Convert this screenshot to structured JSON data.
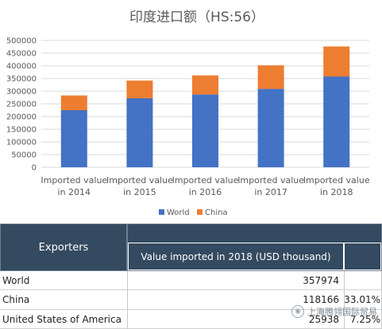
{
  "chart_data": {
    "type": "bar",
    "stacked": true,
    "title": "印度进口额（HS:56）",
    "categories": [
      [
        "Imported value",
        "in 2014"
      ],
      [
        "Imported value",
        "in 2015"
      ],
      [
        "Imported value",
        "in 2016"
      ],
      [
        "Imported value",
        "in 2017"
      ],
      [
        "Imported value",
        "in 2018"
      ]
    ],
    "series": [
      {
        "name": "World",
        "color": "#4472c4",
        "values": [
          225000,
          272000,
          287000,
          309000,
          357974
        ]
      },
      {
        "name": "China",
        "color": "#ed7d31",
        "values": [
          58000,
          70000,
          75000,
          93000,
          118166
        ]
      }
    ],
    "ylim": [
      0,
      500000
    ],
    "yticks": [
      0,
      50000,
      100000,
      150000,
      200000,
      250000,
      300000,
      350000,
      400000,
      450000,
      500000
    ],
    "grid": true,
    "legend": "bottom"
  },
  "table": {
    "header_left": "Exporters",
    "header_right": "Value imported in 2018 (USD thousand)",
    "rows": [
      {
        "name": "World",
        "value": "357974",
        "share": ""
      },
      {
        "name": "China",
        "value": "118166",
        "share": "33.01%"
      },
      {
        "name": "United States of America",
        "value": "25938",
        "share": "7.25%"
      }
    ]
  },
  "watermark": "上海腾翎国际贸易"
}
